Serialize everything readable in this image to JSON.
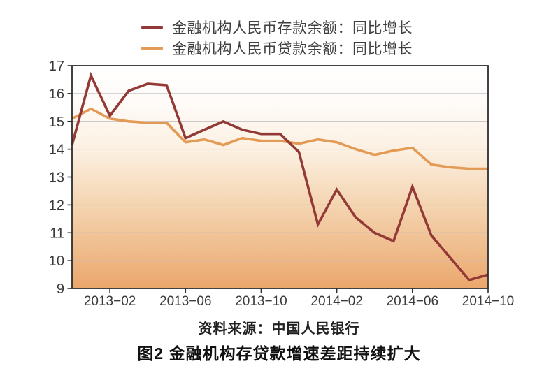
{
  "page": {
    "background": "#ffffff"
  },
  "chart_data": {
    "type": "line",
    "title": "图2 金融机构存贷款增速差距持续扩大",
    "source_note": "资料来源：中国人民银行",
    "xlabel": "",
    "ylabel": "",
    "ylim": [
      9,
      17
    ],
    "yticks": [
      17,
      16,
      15,
      14,
      13,
      12,
      11,
      10,
      9
    ],
    "grid": "horizontal",
    "legend_position": "top-center",
    "x": [
      "2012-12",
      "2013-01",
      "2013-02",
      "2013-03",
      "2013-04",
      "2013-05",
      "2013-06",
      "2013-07",
      "2013-08",
      "2013-09",
      "2013-10",
      "2013-11",
      "2013-12",
      "2014-01",
      "2014-02",
      "2014-03",
      "2014-04",
      "2014-05",
      "2014-06",
      "2014-07",
      "2014-08",
      "2014-09",
      "2014-10"
    ],
    "x_tick_labels": [
      "2013−02",
      "2013−06",
      "2013−10",
      "2014−02",
      "2014−06",
      "2014−10"
    ],
    "x_tick_indices": [
      2,
      6,
      10,
      14,
      18,
      22
    ],
    "series": [
      {
        "name": "金融机构人民币存款余额：同比增长",
        "color": "#943a36",
        "values": [
          14.15,
          16.65,
          15.2,
          16.1,
          16.35,
          16.3,
          14.4,
          14.7,
          15.0,
          14.7,
          14.55,
          14.55,
          13.9,
          11.3,
          12.55,
          11.55,
          11.0,
          10.7,
          12.65,
          10.9,
          10.1,
          9.3,
          9.5
        ]
      },
      {
        "name": "金融机构人民币贷款余额：同比增长",
        "color": "#e39a55",
        "values": [
          15.1,
          15.45,
          15.1,
          15.0,
          14.95,
          14.95,
          14.25,
          14.35,
          14.15,
          14.4,
          14.3,
          14.3,
          14.2,
          14.35,
          14.25,
          14.0,
          13.8,
          13.95,
          14.05,
          13.45,
          13.35,
          13.3,
          13.3
        ]
      }
    ],
    "colors": {
      "plot_border": "#2e2e2e",
      "gridline": "#bcbcbc",
      "tick_label": "#3a3a3a"
    },
    "plot_bg_gradient": [
      {
        "offset": "0%",
        "color": "#ffffff"
      },
      {
        "offset": "16%",
        "color": "#fefbf8"
      },
      {
        "offset": "38%",
        "color": "#fcf0e2"
      },
      {
        "offset": "62%",
        "color": "#f4d5b2"
      },
      {
        "offset": "100%",
        "color": "#eba76c"
      }
    ]
  }
}
